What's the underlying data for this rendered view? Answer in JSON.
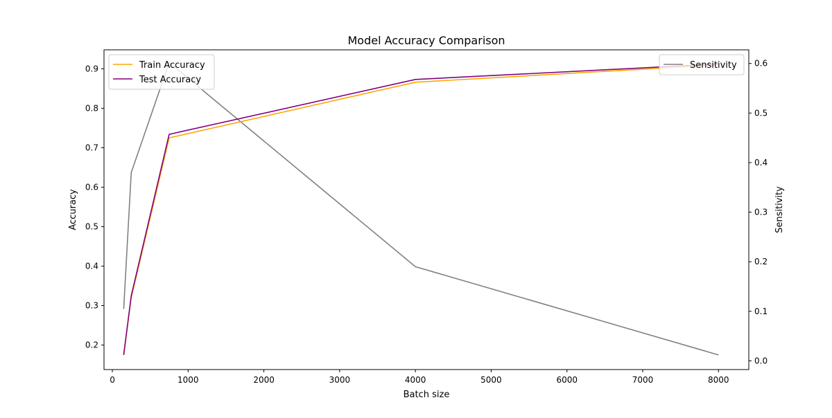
{
  "chart_data": {
    "type": "line",
    "title": "Model Accuracy Comparison",
    "xlabel": "Batch size",
    "ylabel": "Accuracy",
    "y2label": "Sensitivity",
    "xlim": [
      -110,
      8400
    ],
    "ylim": [
      0.138,
      0.948
    ],
    "y2lim": [
      -0.0175,
      0.6275
    ],
    "xticks": [
      0,
      1000,
      2000,
      3000,
      4000,
      5000,
      6000,
      7000,
      8000
    ],
    "yticks": [
      0.2,
      0.3,
      0.4,
      0.5,
      0.6,
      0.7,
      0.8,
      0.9
    ],
    "y2ticks": [
      0.0,
      0.1,
      0.2,
      0.3,
      0.4,
      0.5,
      0.6
    ],
    "x": [
      150,
      250,
      750,
      4000,
      8000
    ],
    "series": [
      {
        "name": "Train Accuracy",
        "axis": "left",
        "color": "#FFA500",
        "values": [
          0.175,
          0.32,
          0.725,
          0.866,
          0.91
        ]
      },
      {
        "name": "Test Accuracy",
        "axis": "left",
        "color": "#800080",
        "values": [
          0.175,
          0.325,
          0.734,
          0.873,
          0.912
        ]
      },
      {
        "name": "Sensitivity",
        "axis": "right",
        "color": "#808080",
        "values": [
          0.105,
          0.38,
          0.602,
          0.19,
          0.012
        ]
      }
    ],
    "legend_left": {
      "placement": "upper left",
      "items": [
        "Train Accuracy",
        "Test Accuracy"
      ]
    },
    "legend_right": {
      "placement": "upper right",
      "items": [
        "Sensitivity"
      ]
    },
    "grid": false
  }
}
